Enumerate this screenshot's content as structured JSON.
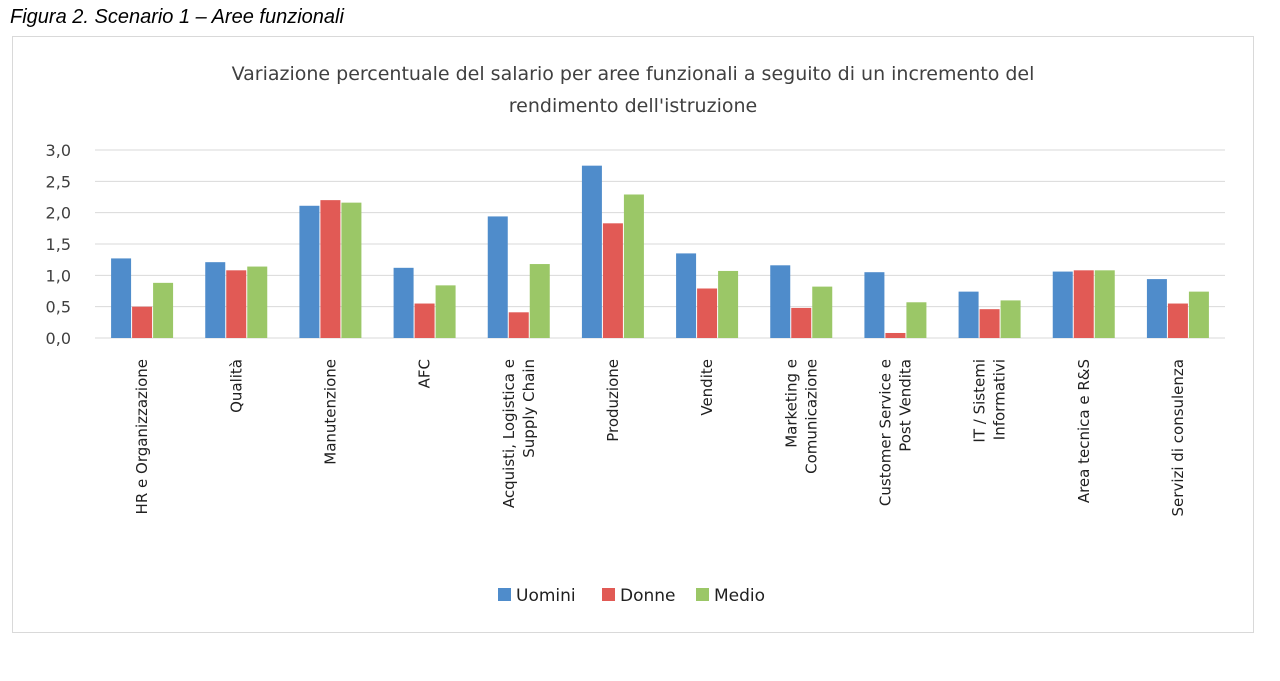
{
  "caption": "Figura 2. Scenario 1 – Aree funzionali",
  "chart_data": {
    "type": "bar",
    "title": "Variazione percentuale del salario per aree funzionali a seguito di un incremento del rendimento dell'istruzione",
    "title_lines": [
      "Variazione percentuale del salario per aree funzionali a seguito di un incremento del",
      "rendimento dell'istruzione"
    ],
    "xlabel": "",
    "ylabel": "",
    "ylim": [
      0,
      3.0
    ],
    "yticks": [
      "0,0",
      "0,5",
      "1,0",
      "1,5",
      "2,0",
      "2,5",
      "3,0"
    ],
    "grid": true,
    "legend_position": "bottom",
    "categories": [
      "HR e Organizzazione",
      "Qualità",
      "Manutenzione",
      "AFC",
      "Acquisti, Logistica e Supply Chain",
      "Produzione",
      "Vendite",
      "Marketing e Comunicazione",
      "Customer Service e Post Vendita",
      "IT / Sistemi Informativi",
      "Area tecnica e R&S",
      "Servizi di consulenza"
    ],
    "category_label_lines": [
      [
        "HR e Organizzazione"
      ],
      [
        "Qualità"
      ],
      [
        "Manutenzione"
      ],
      [
        "AFC"
      ],
      [
        "Acquisti, Logistica e",
        "Supply Chain"
      ],
      [
        "Produzione"
      ],
      [
        "Vendite"
      ],
      [
        "Marketing e",
        "Comunicazione"
      ],
      [
        "Customer Service e",
        "Post Vendita"
      ],
      [
        "IT / Sistemi",
        "Informativi"
      ],
      [
        "Area tecnica e R&S"
      ],
      [
        "Servizi di consulenza"
      ]
    ],
    "series": [
      {
        "name": "Uomini",
        "color": "#4f8ccb",
        "values": [
          1.27,
          1.21,
          2.11,
          1.12,
          1.94,
          2.75,
          1.35,
          1.16,
          1.05,
          0.74,
          1.06,
          0.94
        ]
      },
      {
        "name": "Donne",
        "color": "#e15a55",
        "values": [
          0.5,
          1.08,
          2.2,
          0.55,
          0.41,
          1.83,
          0.79,
          0.48,
          0.08,
          0.46,
          1.08,
          0.55
        ]
      },
      {
        "name": "Medio",
        "color": "#9bc767",
        "values": [
          0.88,
          1.14,
          2.16,
          0.84,
          1.18,
          2.29,
          1.07,
          0.82,
          0.57,
          0.6,
          1.08,
          0.74
        ]
      }
    ]
  }
}
